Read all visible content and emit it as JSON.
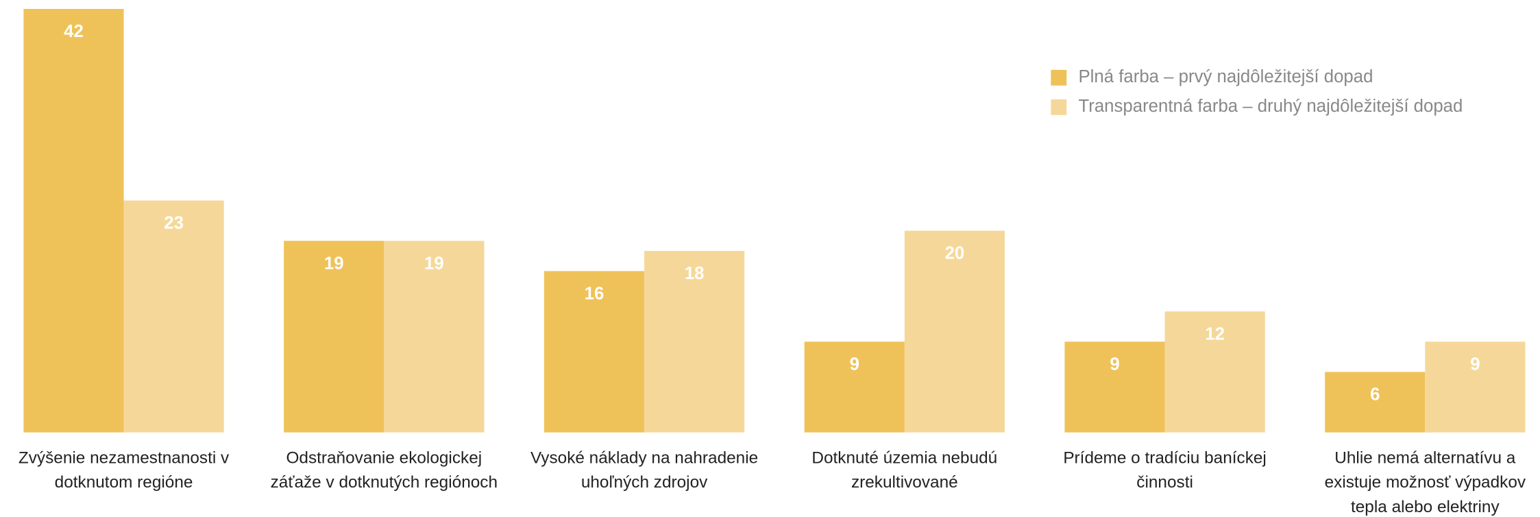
{
  "chart_data": {
    "type": "bar",
    "categories": [
      "Zvýšenie nezamestnanosti v dotknutom regióne",
      "Odstraňovanie ekologickej záťaže v dotknutých regiónoch",
      "Vysoké náklady na nahradenie uhoľných zdrojov",
      "Dotknuté územia nebudú zrekultivované",
      "Prídeme o tradíciu baníckej činnosti",
      "Uhlie nemá alternatívu a existuje možnosť výpadkov tepla alebo elektriny"
    ],
    "series": [
      {
        "name": "Plná farba – prvý najdôležitejší dopad",
        "color": "#efc259",
        "values": [
          42,
          19,
          16,
          9,
          9,
          6
        ]
      },
      {
        "name": "Transparentná farba – druhý najdôležitejší dopad",
        "color": "#f5d899",
        "values": [
          23,
          19,
          18,
          20,
          12,
          9
        ]
      }
    ],
    "ylim": [
      0,
      42
    ],
    "legend": "upper right"
  }
}
